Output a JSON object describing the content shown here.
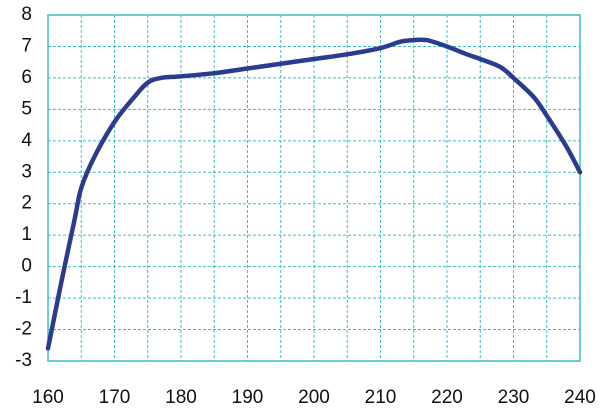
{
  "chart_data": {
    "type": "line",
    "x": [
      160,
      162,
      164,
      165,
      167,
      170,
      173,
      175,
      177,
      180,
      185,
      190,
      195,
      200,
      205,
      210,
      213,
      215,
      217,
      220,
      223,
      225,
      228,
      230,
      233,
      235,
      238,
      240
    ],
    "series": [
      {
        "color": "#2b3c8e",
        "values": [
          -2.6,
          -0.5,
          1.5,
          2.5,
          3.5,
          4.6,
          5.4,
          5.85,
          6.0,
          6.05,
          6.15,
          6.3,
          6.45,
          6.6,
          6.75,
          6.95,
          7.15,
          7.2,
          7.2,
          7.0,
          6.75,
          6.6,
          6.35,
          6.0,
          5.4,
          4.8,
          3.8,
          3.0
        ]
      }
    ],
    "xlim": [
      160,
      240
    ],
    "ylim": [
      -3,
      8
    ],
    "xticks": [
      160,
      170,
      180,
      190,
      200,
      210,
      220,
      230,
      240
    ],
    "yticks": [
      -3,
      -2,
      -1,
      0,
      1,
      2,
      3,
      4,
      5,
      6,
      7,
      8
    ],
    "xgrid": [
      160,
      165,
      170,
      175,
      180,
      185,
      190,
      195,
      200,
      205,
      210,
      215,
      220,
      225,
      230,
      235,
      240
    ],
    "grid": true,
    "grid_color": "#3bbcc4"
  }
}
